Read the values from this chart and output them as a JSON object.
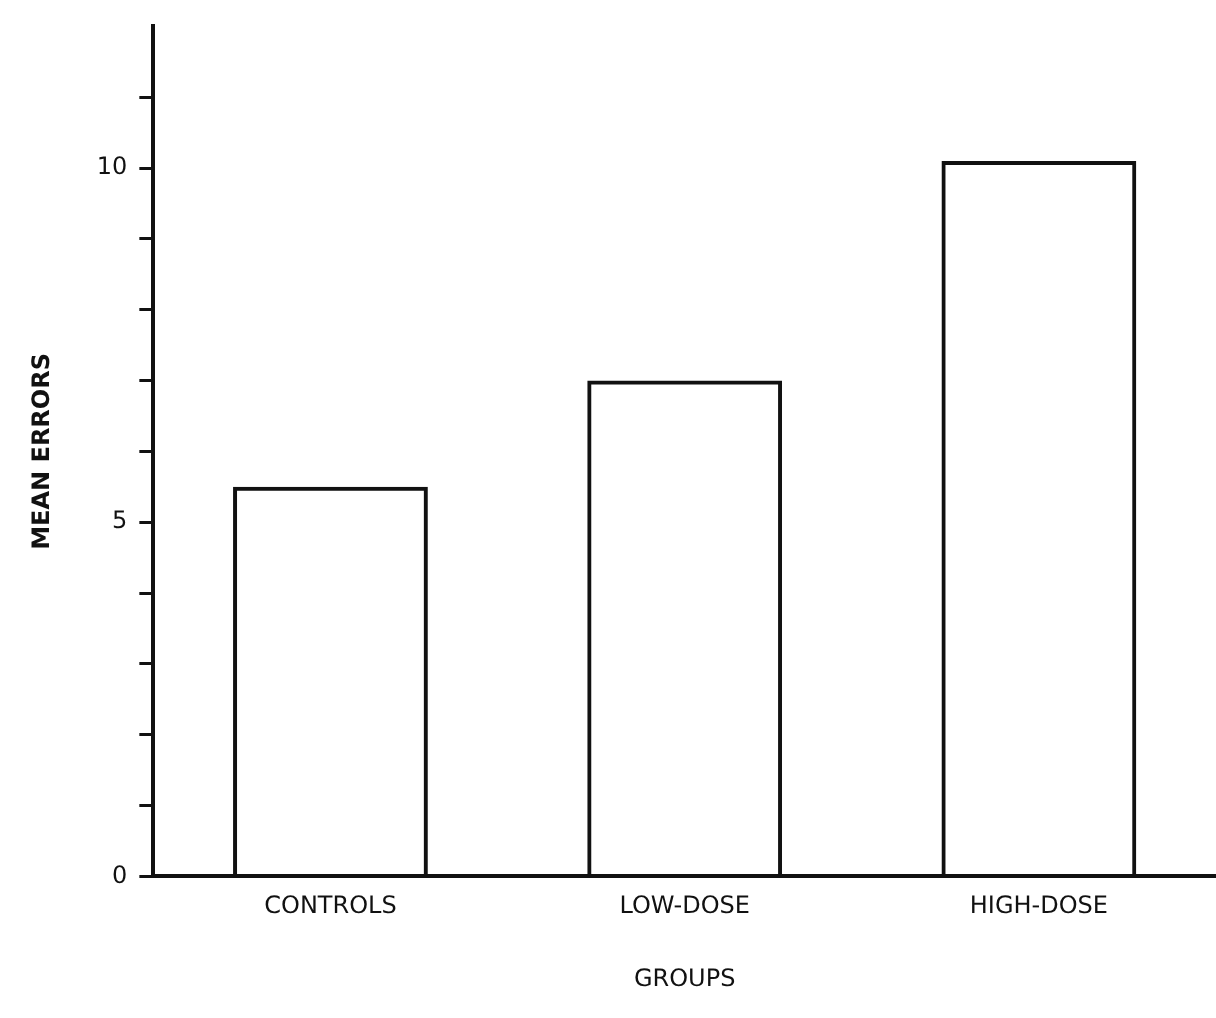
{
  "chart_data": {
    "type": "bar",
    "xlabel": "GROUPS",
    "ylabel": "MEAN ERRORS",
    "categories": [
      "CONTROLS",
      "LOW-DOSE",
      "HIGH-DOSE"
    ],
    "values": [
      5.5,
      7.0,
      10.1
    ],
    "color": "#111111",
    "ylim": [
      0,
      12
    ],
    "yticks": [
      0,
      {
        "value": 1,
        "label": null
      },
      {
        "value": 2,
        "label": null
      },
      {
        "value": 3,
        "label": null
      },
      {
        "value": 4,
        "label": null
      },
      5,
      {
        "value": 6,
        "label": null
      },
      {
        "value": 7,
        "label": null
      },
      {
        "value": 8,
        "label": null
      },
      {
        "value": 9,
        "label": null
      },
      10,
      {
        "value": 11,
        "label": null
      }
    ],
    "grid": false,
    "legend": false
  }
}
